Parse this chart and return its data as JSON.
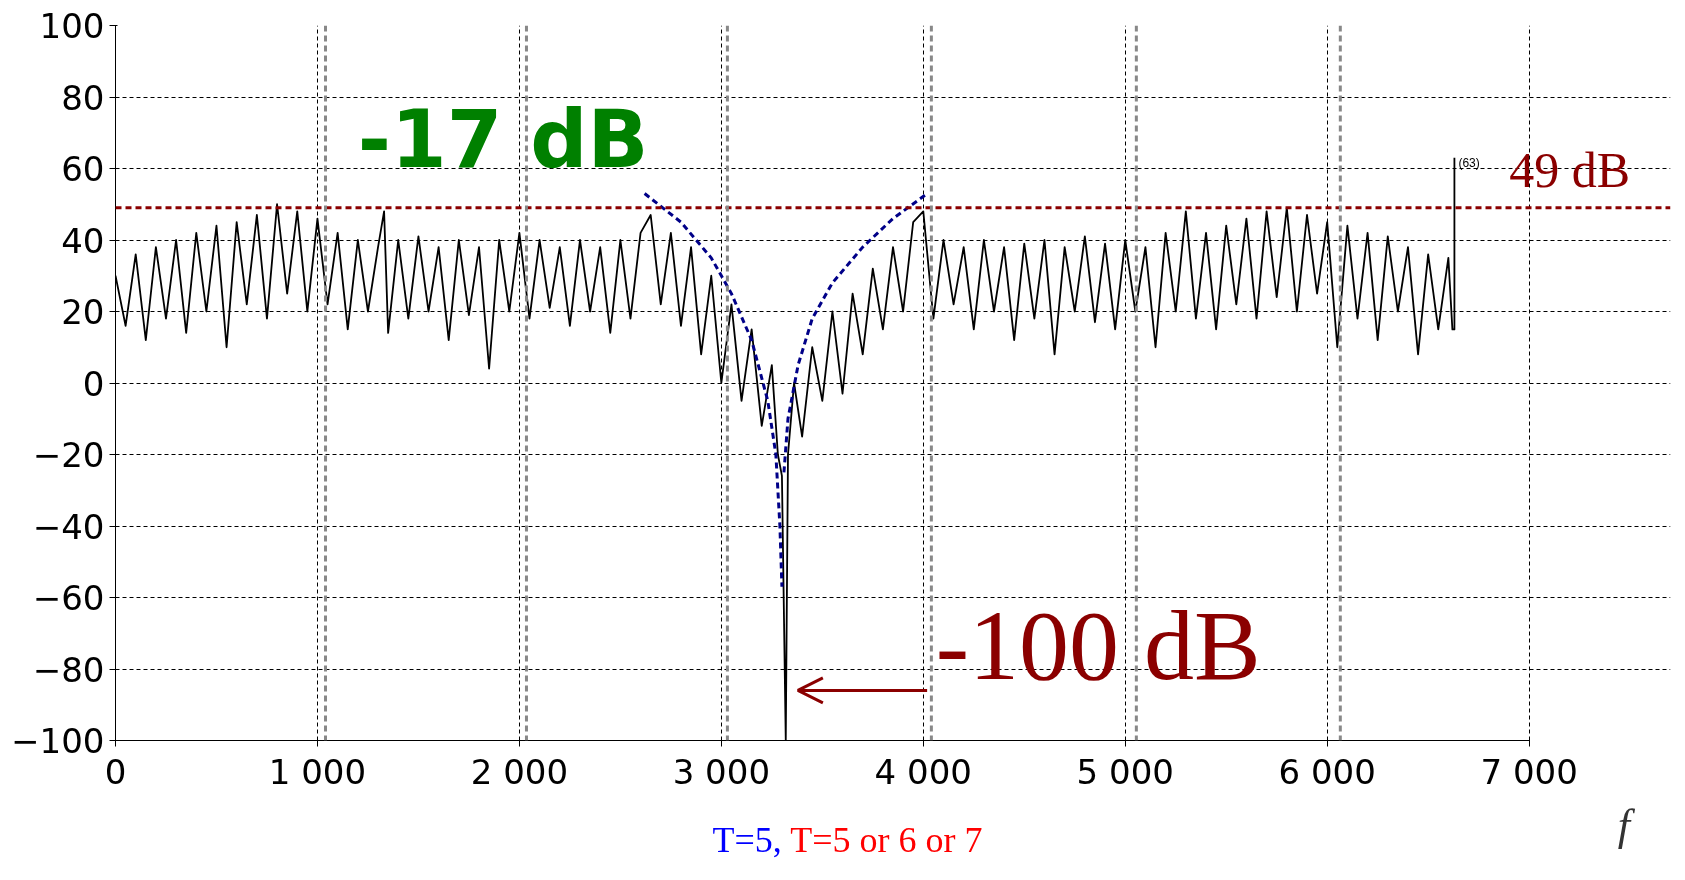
{
  "chart_data": {
    "type": "line",
    "xlabel": "f",
    "xlim": [
      0,
      7000
    ],
    "xticks": [
      0,
      {
        "value": 1000,
        "label": "1 000"
      },
      {
        "value": 2000,
        "label": "2 000"
      },
      {
        "value": 3000,
        "label": "3 000"
      },
      {
        "value": 4000,
        "label": "4 000"
      },
      {
        "value": 5000,
        "label": "5 000"
      },
      {
        "value": 6000,
        "label": "6 000"
      },
      {
        "value": 7000,
        "label": "7 000"
      }
    ],
    "ylim": [
      -100,
      100
    ],
    "yticks": [
      -100,
      -80,
      -60,
      -40,
      -20,
      0,
      20,
      40,
      60,
      80,
      100
    ],
    "grid": true,
    "series": [
      {
        "color": "#000000",
        "line_style": "solid",
        "x": [
          0,
          50,
          100,
          150,
          200,
          250,
          300,
          350,
          400,
          450,
          500,
          550,
          600,
          650,
          700,
          750,
          800,
          850,
          900,
          950,
          1000,
          1050,
          1100,
          1150,
          1200,
          1250,
          1300,
          1330,
          1350,
          1400,
          1450,
          1500,
          1550,
          1600,
          1650,
          1700,
          1750,
          1800,
          1850,
          1900,
          1950,
          2000,
          2050,
          2100,
          2150,
          2200,
          2250,
          2300,
          2350,
          2400,
          2450,
          2500,
          2550,
          2600,
          2650,
          2700,
          2750,
          2800,
          2850,
          2900,
          2950,
          3000,
          3050,
          3100,
          3150,
          3200,
          3250,
          3280,
          3300,
          3319,
          3330,
          3360,
          3400,
          3450,
          3500,
          3550,
          3600,
          3650,
          3700,
          3750,
          3800,
          3850,
          3900,
          3950,
          4000,
          4050,
          4100,
          4150,
          4200,
          4250,
          4300,
          4350,
          4400,
          4450,
          4500,
          4550,
          4600,
          4650,
          4700,
          4750,
          4800,
          4850,
          4900,
          4950,
          5000,
          5050,
          5100,
          5150,
          5200,
          5250,
          5300,
          5350,
          5400,
          5450,
          5500,
          5550,
          5600,
          5650,
          5700,
          5750,
          5800,
          5850,
          5900,
          5950,
          6000,
          6050,
          6100,
          6150,
          6200,
          6250,
          6300,
          6350,
          6400,
          6450,
          6500,
          6550,
          6600,
          6620,
          6630,
          6630
        ],
        "values": [
          30,
          16,
          36,
          12,
          38,
          18,
          40,
          14,
          42,
          20,
          44,
          10,
          45,
          22,
          47,
          18,
          50,
          25,
          48,
          20,
          46,
          22,
          42,
          15,
          40,
          20,
          38,
          48,
          14,
          40,
          18,
          41,
          20,
          38,
          12,
          40,
          19,
          38,
          4,
          40,
          20,
          42,
          18,
          40,
          21,
          38,
          16,
          40,
          20,
          38,
          14,
          40,
          18,
          42,
          47,
          22,
          42,
          16,
          38,
          8,
          30,
          0,
          22,
          -5,
          15,
          -12,
          5,
          -20,
          -26,
          -100,
          -20,
          0,
          -15,
          10,
          -5,
          20,
          -3,
          25,
          8,
          32,
          15,
          38,
          20,
          45,
          48,
          18,
          40,
          22,
          38,
          15,
          40,
          20,
          38,
          12,
          39,
          18,
          40,
          8,
          38,
          20,
          41,
          17,
          39,
          15,
          40,
          20,
          38,
          10,
          42,
          20,
          48,
          18,
          42,
          15,
          44,
          22,
          46,
          18,
          48,
          24,
          49,
          20,
          47,
          25,
          45,
          10,
          44,
          18,
          42,
          12,
          41,
          20,
          38,
          8,
          36,
          15,
          35,
          15,
          15,
          63
        ]
      },
      {
        "color": "#000088",
        "line_style": "dashed",
        "x": [
          2620,
          2800,
          2950,
          3050,
          3150,
          3230,
          3270,
          3290,
          3300
        ],
        "values": [
          53,
          45,
          35,
          25,
          12,
          -5,
          -20,
          -40,
          -57
        ]
      },
      {
        "color": "#000088",
        "line_style": "dashed",
        "x": [
          3310,
          3330,
          3380,
          3450,
          3550,
          3700,
          3850,
          4020
        ],
        "values": [
          -25,
          -10,
          5,
          18,
          28,
          38,
          46,
          53
        ]
      }
    ],
    "ref_lines": [
      {
        "axis": "y",
        "value": 49,
        "label": "49 dB",
        "color": "#8b0000",
        "line_style": "dashed"
      },
      {
        "axis": "x",
        "value": 1040,
        "color": "#888888",
        "line_style": "dashed"
      },
      {
        "axis": "x",
        "value": 2035,
        "color": "#888888",
        "line_style": "dashed"
      },
      {
        "axis": "x",
        "value": 3030,
        "color": "#888888",
        "line_style": "dashed"
      },
      {
        "axis": "x",
        "value": 4040,
        "color": "#888888",
        "line_style": "dashed"
      },
      {
        "axis": "x",
        "value": 5055,
        "color": "#888888",
        "line_style": "dashed"
      },
      {
        "axis": "x",
        "value": 6065,
        "color": "#888888",
        "line_style": "dashed"
      }
    ],
    "annotations": [
      "-17 dB",
      {
        "text": "-100 dB",
        "x": 3319,
        "y": -100
      },
      {
        "text": "(63)",
        "x": 6630,
        "y": 63
      },
      "T=5,",
      "T=5 or 6 or 7"
    ]
  }
}
